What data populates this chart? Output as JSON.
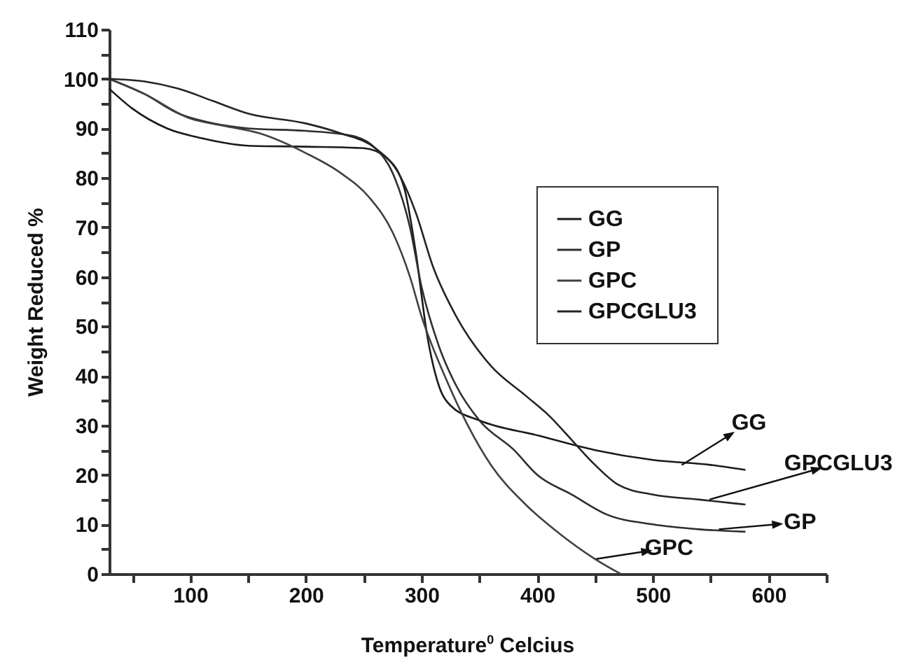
{
  "chart_data": {
    "type": "line",
    "xlabel": "Temperature$^{0}$ Celcius",
    "ylabel": "Weight Reduced %",
    "xlim": [
      30,
      650
    ],
    "ylim": [
      0,
      110
    ],
    "xticks": [
      {
        "value": 50,
        "label": null
      },
      100,
      {
        "value": 150,
        "label": null
      },
      200,
      {
        "value": 250,
        "label": null
      },
      300,
      {
        "value": 350,
        "label": null
      },
      400,
      {
        "value": 450,
        "label": null
      },
      500,
      {
        "value": 550,
        "label": null
      },
      600,
      {
        "value": 650,
        "label": null
      }
    ],
    "yticks": [
      0,
      {
        "value": 5,
        "label": null
      },
      10,
      {
        "value": 15,
        "label": null
      },
      20,
      {
        "value": 25,
        "label": null
      },
      30,
      {
        "value": 35,
        "label": null
      },
      40,
      {
        "value": 45,
        "label": null
      },
      50,
      {
        "value": 55,
        "label": null
      },
      60,
      {
        "value": 65,
        "label": null
      },
      70,
      {
        "value": 75,
        "label": null
      },
      80,
      {
        "value": 85,
        "label": null
      },
      90,
      {
        "value": 95,
        "label": null
      },
      100,
      {
        "value": 105,
        "label": null
      },
      110
    ],
    "grid": false,
    "legend": "top right",
    "series": [
      {
        "name": "GG",
        "color": "#1a1a1a",
        "x": [
          30,
          50,
          80,
          110,
          150,
          200,
          250,
          270,
          285,
          295,
          305,
          315,
          325,
          350,
          400,
          450,
          500,
          550,
          580
        ],
        "values": [
          98,
          94,
          90,
          88,
          86.5,
          86.3,
          86,
          84,
          78,
          65,
          48,
          38,
          34,
          31,
          28,
          25,
          23,
          22,
          21
        ]
      },
      {
        "name": "GP",
        "color": "#2e2e2e",
        "x": [
          30,
          60,
          90,
          120,
          150,
          200,
          240,
          260,
          275,
          290,
          300,
          315,
          330,
          350,
          380,
          400,
          430,
          460,
          500,
          540,
          580
        ],
        "values": [
          100,
          97,
          93,
          91,
          90,
          89.5,
          88.5,
          86,
          81,
          70,
          58,
          46,
          38,
          31,
          25,
          20,
          16,
          12,
          10,
          9,
          8.5
        ]
      },
      {
        "name": "GPC",
        "color": "#404040",
        "x": [
          30,
          60,
          100,
          130,
          160,
          200,
          230,
          255,
          275,
          290,
          300,
          320,
          340,
          360,
          390,
          420,
          450,
          472
        ],
        "values": [
          100,
          97,
          92,
          90.5,
          89,
          85,
          81,
          76,
          69,
          60,
          52,
          40,
          30,
          22,
          14,
          8,
          3,
          0
        ]
      },
      {
        "name": "GPCGLU3",
        "color": "#242424",
        "x": [
          30,
          60,
          90,
          120,
          150,
          200,
          230,
          260,
          280,
          295,
          310,
          330,
          360,
          390,
          410,
          430,
          450,
          470,
          500,
          540,
          580
        ],
        "values": [
          100,
          99.5,
          98,
          95.5,
          93,
          91,
          89,
          86,
          81,
          73,
          62,
          52,
          42,
          36,
          32,
          27,
          22,
          18,
          16,
          15,
          14
        ]
      }
    ],
    "annotations": [
      {
        "text": "GG",
        "x": 525,
        "y": 22
      },
      {
        "text": "GPCGLU3",
        "x": 549,
        "y": 15
      },
      {
        "text": "GP",
        "x": 557,
        "y": 9
      },
      {
        "text": "GPC",
        "x": 451,
        "y": 3
      }
    ]
  }
}
